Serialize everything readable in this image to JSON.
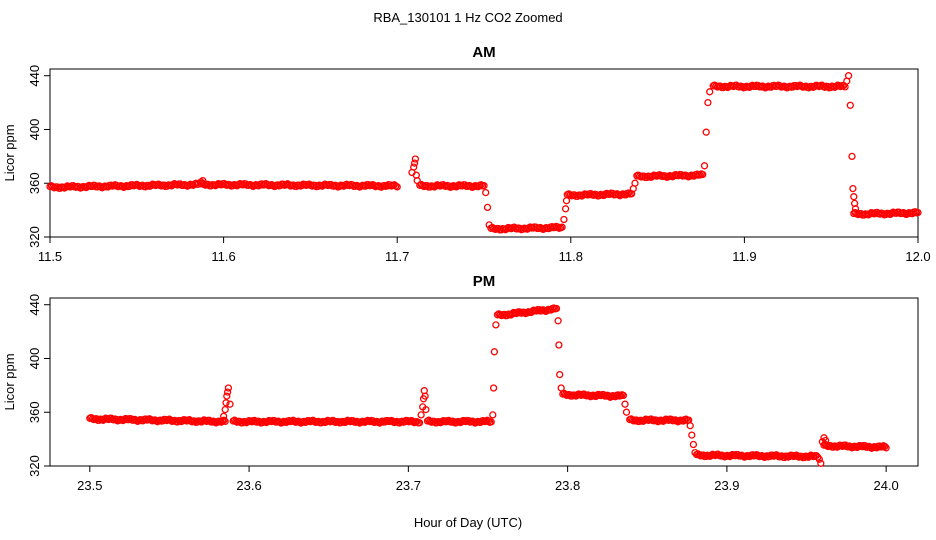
{
  "title": "RBA_130101  1 Hz CO2 Zoomed",
  "xlabel": "Hour of Day (UTC)",
  "ylabel": "Licor ppm",
  "point_color": "#ff0000",
  "chart_data": [
    {
      "type": "scatter",
      "title": "AM",
      "xlim": [
        11.5,
        12.0
      ],
      "ylim": [
        320,
        445
      ],
      "xticks": [
        "11.5",
        "11.6",
        "11.7",
        "11.8",
        "11.9",
        "12.0"
      ],
      "yticks": [
        "320",
        "360",
        "400",
        "440"
      ],
      "segments": [
        {
          "x": [
            11.5,
            11.585
          ],
          "y": [
            357,
            359
          ]
        },
        {
          "x": [
            11.587,
            11.7
          ],
          "y": [
            359,
            358
          ]
        },
        {
          "x": [
            11.713,
            11.75
          ],
          "y": [
            358,
            358
          ]
        },
        {
          "x": [
            11.754,
            11.795
          ],
          "y": [
            326,
            327
          ]
        },
        {
          "x": [
            11.798,
            11.835
          ],
          "y": [
            351,
            352
          ]
        },
        {
          "x": [
            11.838,
            11.876
          ],
          "y": [
            365,
            366
          ]
        },
        {
          "x": [
            11.882,
            11.958
          ],
          "y": [
            432,
            432
          ]
        },
        {
          "x": [
            11.963,
            12.0
          ],
          "y": [
            337,
            338
          ]
        }
      ],
      "points": [
        [
          11.587,
          361
        ],
        [
          11.588,
          362
        ],
        [
          11.7085,
          368
        ],
        [
          11.7095,
          372
        ],
        [
          11.71,
          375
        ],
        [
          11.7105,
          378
        ],
        [
          11.711,
          366
        ],
        [
          11.7115,
          362
        ],
        [
          11.751,
          353
        ],
        [
          11.752,
          342
        ],
        [
          11.753,
          329
        ],
        [
          11.796,
          333
        ],
        [
          11.797,
          341
        ],
        [
          11.7975,
          347
        ],
        [
          11.836,
          356
        ],
        [
          11.837,
          360
        ],
        [
          11.877,
          373
        ],
        [
          11.878,
          398
        ],
        [
          11.879,
          420
        ],
        [
          11.88,
          428
        ],
        [
          11.959,
          436
        ],
        [
          11.96,
          440
        ],
        [
          11.961,
          418
        ],
        [
          11.962,
          380
        ],
        [
          11.9625,
          356
        ],
        [
          11.963,
          350
        ],
        [
          11.9635,
          345
        ],
        [
          11.964,
          341
        ]
      ]
    },
    {
      "type": "scatter",
      "title": "PM",
      "xlim": [
        23.475,
        24.02
      ],
      "ylim": [
        320,
        445
      ],
      "xticks": [
        "23.5",
        "23.6",
        "23.7",
        "23.8",
        "23.9",
        "24.0"
      ],
      "yticks": [
        "320",
        "360",
        "400",
        "440"
      ],
      "segments": [
        {
          "x": [
            23.5,
            23.585
          ],
          "y": [
            355,
            353
          ]
        },
        {
          "x": [
            23.59,
            23.707
          ],
          "y": [
            353,
            353
          ]
        },
        {
          "x": [
            23.712,
            23.752
          ],
          "y": [
            353,
            353
          ]
        },
        {
          "x": [
            23.756,
            23.793
          ],
          "y": [
            432,
            437
          ]
        },
        {
          "x": [
            23.797,
            23.835
          ],
          "y": [
            373,
            372
          ]
        },
        {
          "x": [
            23.839,
            23.876
          ],
          "y": [
            354,
            354
          ]
        },
        {
          "x": [
            23.881,
            23.957
          ],
          "y": [
            328,
            327
          ]
        },
        {
          "x": [
            23.961,
            24.0
          ],
          "y": [
            335,
            334
          ]
        }
      ],
      "points": [
        [
          23.584,
          357
        ],
        [
          23.585,
          362
        ],
        [
          23.5855,
          367
        ],
        [
          23.586,
          372
        ],
        [
          23.5865,
          375
        ],
        [
          23.587,
          378
        ],
        [
          23.588,
          366
        ],
        [
          23.708,
          358
        ],
        [
          23.709,
          364
        ],
        [
          23.7095,
          370
        ],
        [
          23.71,
          376
        ],
        [
          23.7105,
          372
        ],
        [
          23.711,
          362
        ],
        [
          23.753,
          358
        ],
        [
          23.7535,
          378
        ],
        [
          23.754,
          405
        ],
        [
          23.755,
          425
        ],
        [
          23.794,
          428
        ],
        [
          23.7945,
          410
        ],
        [
          23.795,
          388
        ],
        [
          23.796,
          378
        ],
        [
          23.836,
          366
        ],
        [
          23.837,
          360
        ],
        [
          23.877,
          350
        ],
        [
          23.878,
          343
        ],
        [
          23.879,
          336
        ],
        [
          23.88,
          330
        ],
        [
          23.958,
          325
        ],
        [
          23.959,
          322
        ],
        [
          23.96,
          338
        ],
        [
          23.961,
          341
        ],
        [
          23.962,
          339
        ]
      ]
    }
  ]
}
